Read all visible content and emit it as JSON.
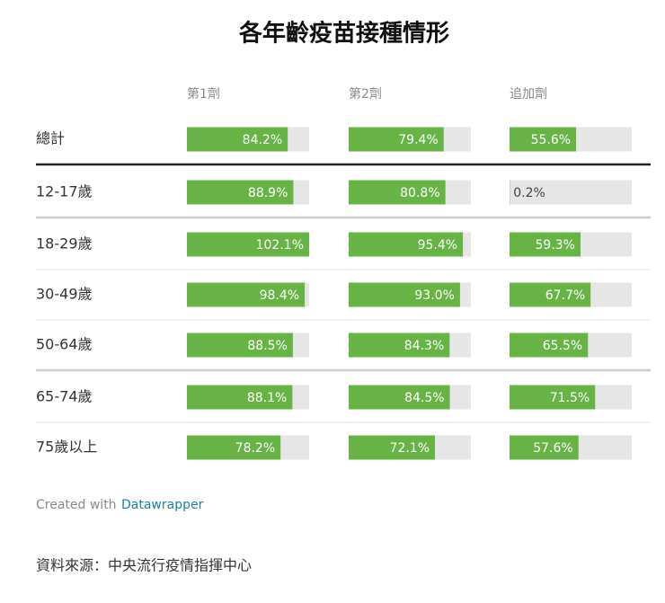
{
  "chart_data": {
    "type": "bar-table",
    "title": "各年齡疫苗接種情形",
    "categories": [
      "總計",
      "12-17歲",
      "18-29歲",
      "30-49歲",
      "50-64歲",
      "65-74歲",
      "75歲以上"
    ],
    "series": [
      {
        "name": "第1劑",
        "color": "#67b346",
        "values": [
          84.2,
          88.9,
          102.1,
          98.4,
          88.5,
          88.1,
          78.2
        ],
        "value_labels": [
          "84.2%",
          "88.9%",
          "102.1%",
          "98.4%",
          "88.5%",
          "88.1%",
          "78.2%"
        ]
      },
      {
        "name": "第2劑",
        "color": "#67b346",
        "values": [
          79.4,
          80.8,
          95.4,
          93.0,
          84.3,
          84.5,
          72.1
        ],
        "value_labels": [
          "79.4%",
          "80.8%",
          "95.4%",
          "93.0%",
          "84.3%",
          "84.5%",
          "72.1%"
        ]
      },
      {
        "name": "追加劑",
        "color": "#67b346",
        "values": [
          55.6,
          0.2,
          59.3,
          67.7,
          65.5,
          71.5,
          57.6
        ],
        "value_labels": [
          "55.6%",
          "0.2%",
          "59.3%",
          "67.7%",
          "65.5%",
          "71.5%",
          "57.6%"
        ]
      }
    ]
  },
  "credit": {
    "prefix": "Created with",
    "link": "Datawrapper"
  },
  "source": "資料來源：中央流行疫情指揮中心"
}
